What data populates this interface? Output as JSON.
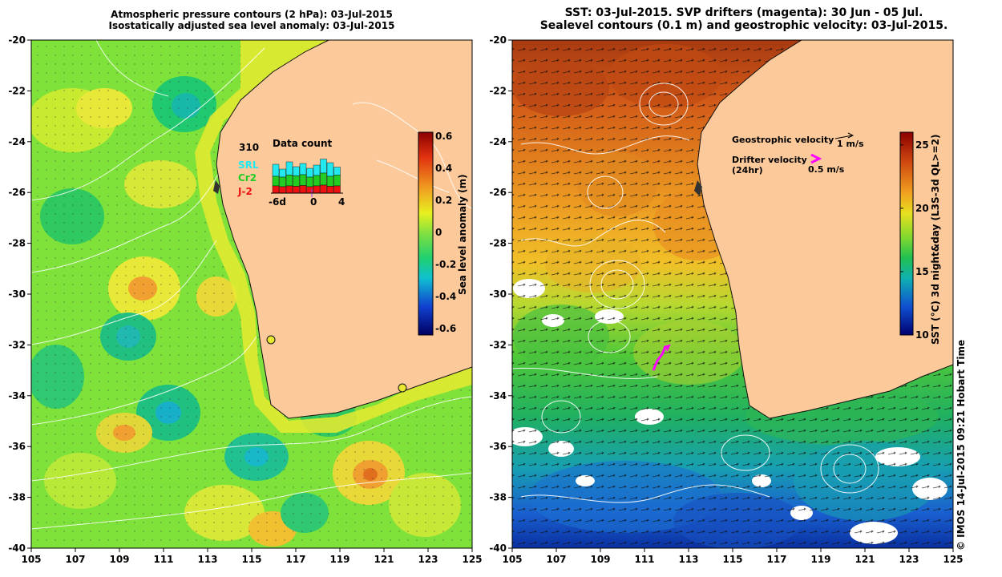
{
  "left_panel": {
    "title_line1": "Atmospheric pressure contours (2 hPa): 03-Jul-2015",
    "title_line2": "Isostatically adjusted sea level anomaly: 03-Jul-2015",
    "colorbar": {
      "label": "Sea level anomaly (m)",
      "ticks": [
        "0.6",
        "0.4",
        "0.2",
        "0",
        "-0.2",
        "-0.4",
        "-0.6"
      ],
      "range": [
        -0.6,
        0.6
      ]
    },
    "inset": {
      "title": "Data count",
      "max_label": "310",
      "legend": [
        {
          "name": "SRL",
          "color": "#22e8f0"
        },
        {
          "name": "Cr2",
          "color": "#22cc22"
        },
        {
          "name": "J-2",
          "color": "#ee1111"
        }
      ],
      "xticks": [
        "-6d",
        "0",
        "4"
      ],
      "bars": [
        {
          "j2": 0.18,
          "cr2": 0.42,
          "srl": 0.72
        },
        {
          "j2": 0.16,
          "cr2": 0.4,
          "srl": 0.6
        },
        {
          "j2": 0.18,
          "cr2": 0.45,
          "srl": 0.78
        },
        {
          "j2": 0.17,
          "cr2": 0.43,
          "srl": 0.66
        },
        {
          "j2": 0.19,
          "cr2": 0.46,
          "srl": 0.74
        },
        {
          "j2": 0.16,
          "cr2": 0.4,
          "srl": 0.62
        },
        {
          "j2": 0.18,
          "cr2": 0.44,
          "srl": 0.7
        },
        {
          "j2": 0.2,
          "cr2": 0.5,
          "srl": 0.85
        },
        {
          "j2": 0.17,
          "cr2": 0.42,
          "srl": 0.76
        },
        {
          "j2": 0.18,
          "cr2": 0.45,
          "srl": 0.65
        }
      ]
    },
    "stations": [
      "station-fremantle",
      "station-esperance"
    ]
  },
  "right_panel": {
    "title_line1": "SST: 03-Jul-2015. SVP drifters (magenta): 30 Jun - 05 Jul.",
    "title_line2": "Sealevel contours (0.1 m) and geostrophic velocity: 03-Jul-2015.",
    "legend": {
      "geo_label": "Geostrophic velocity",
      "geo_scale": "1 m/s",
      "drifter_label": "Drifter velocity",
      "drifter_sub": "(24hr)",
      "drifter_scale": "0.5 m/s",
      "drifter_color": "#ff00ff"
    },
    "colorbar": {
      "label": "SST (°C) 3d night&day (L3S-3d QL>=2)",
      "ticks": [
        "25",
        "20",
        "15",
        "10"
      ],
      "range": [
        10,
        26
      ]
    }
  },
  "axes": {
    "xticks": [
      "105",
      "107",
      "109",
      "111",
      "113",
      "115",
      "117",
      "119",
      "121",
      "123",
      "125"
    ],
    "yticks": [
      "-20",
      "-22",
      "-24",
      "-26",
      "-28",
      "-30",
      "-32",
      "-34",
      "-36",
      "-38",
      "-40"
    ],
    "lon_range": [
      105,
      125
    ],
    "lat_range": [
      -40,
      -20
    ]
  },
  "credit": "© IMOS 14-Jul-2015 09:21 Hobart Time",
  "colors": {
    "land": "#fcc99b",
    "sla_background": "#7ee23a",
    "sst_warm": "#e07722",
    "sst_cool": "#22bb44",
    "sst_cold": "#1166dd"
  }
}
